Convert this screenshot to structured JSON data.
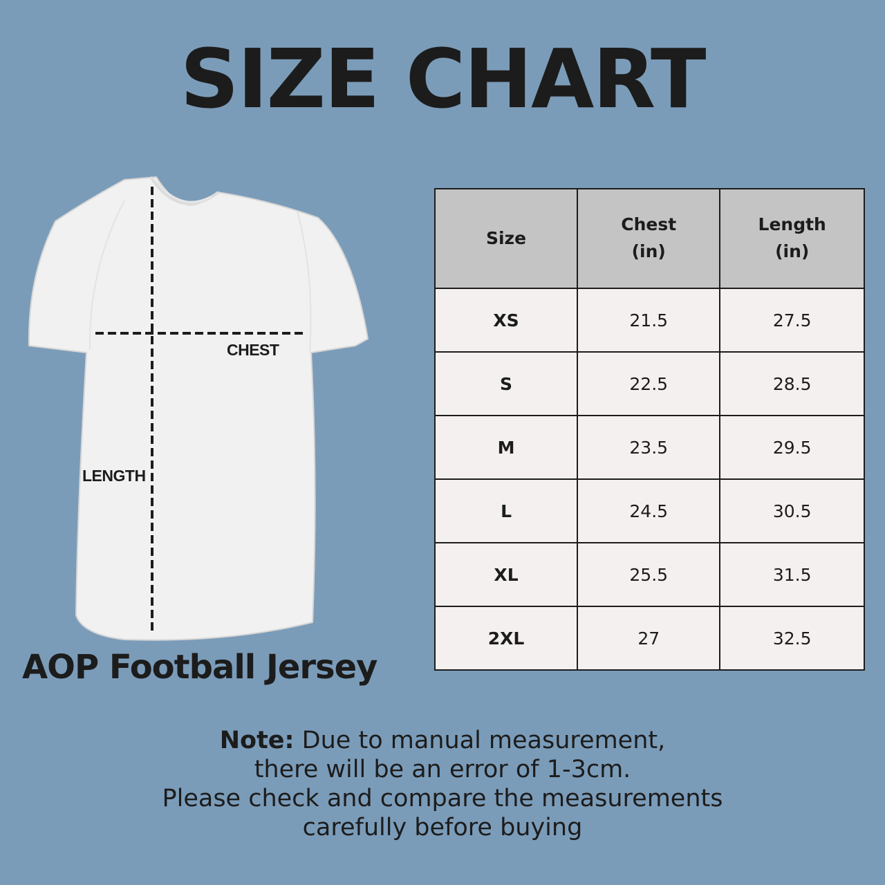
{
  "title": "SIZE CHART",
  "diagram": {
    "chest_label": "CHEST",
    "length_label": "LENGTH",
    "product_name": "AOP Football Jersey"
  },
  "table": {
    "headers": [
      {
        "line1": "Size",
        "line2": ""
      },
      {
        "line1": "Chest",
        "line2": "(in)"
      },
      {
        "line1": "Length",
        "line2": "(in)"
      }
    ],
    "rows": [
      {
        "size": "XS",
        "chest": "21.5",
        "length": "27.5"
      },
      {
        "size": "S",
        "chest": "22.5",
        "length": "28.5"
      },
      {
        "size": "M",
        "chest": "23.5",
        "length": "29.5"
      },
      {
        "size": "L",
        "chest": "24.5",
        "length": "30.5"
      },
      {
        "size": "XL",
        "chest": "25.5",
        "length": "31.5"
      },
      {
        "size": "2XL",
        "chest": "27",
        "length": "32.5"
      }
    ]
  },
  "note": {
    "prefix": "Note:",
    "line1": " Due to manual measurement,",
    "line2": "there will be an error of 1-3cm.",
    "line3": "Please check and compare the measurements",
    "line4": "carefully before buying"
  },
  "colors": {
    "background": "#7b9cb9",
    "header_fill": "#c4c4c4",
    "cell_fill": "#f5f0f0",
    "text": "#1c1c1c"
  }
}
